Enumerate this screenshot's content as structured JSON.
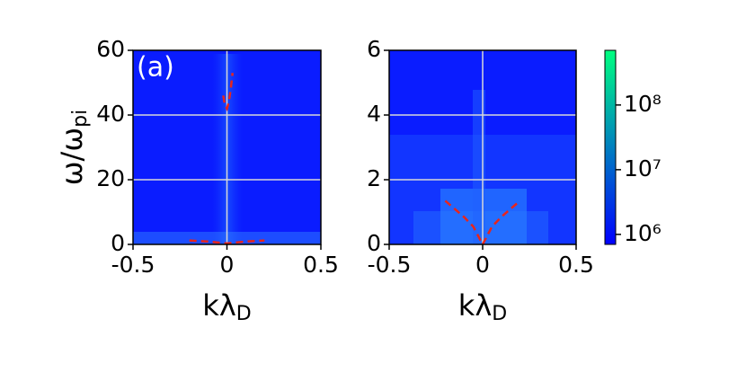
{
  "chart_data": [
    {
      "type": "heatmap",
      "annotation": "(a)",
      "x_label": {
        "text": "kλ",
        "sub": "D"
      },
      "y_label": {
        "text": "ω/ω",
        "sub": "pi"
      },
      "xlim": [
        -0.5,
        0.5
      ],
      "xticks": [
        -0.5,
        0.0,
        0.5
      ],
      "ylim": [
        0,
        60
      ],
      "yticks": [
        0,
        20,
        40,
        60
      ],
      "grid": true,
      "series": [
        {
          "color": "#e8251c",
          "x": [
            -0.02,
            -0.01,
            0.0,
            0.01,
            0.02,
            0.03
          ],
          "values": [
            46,
            43,
            42,
            44,
            48,
            53
          ]
        },
        {
          "color": "#e8251c",
          "x": [
            -0.2,
            -0.1,
            0.0,
            0.1,
            0.2
          ],
          "values": [
            1.2,
            0.9,
            0.3,
            0.9,
            1.2
          ]
        }
      ]
    },
    {
      "type": "heatmap",
      "x_label": {
        "text": "kλ",
        "sub": "D"
      },
      "xlim": [
        -0.5,
        0.5
      ],
      "xticks": [
        -0.5,
        0.0,
        0.5
      ],
      "ylim": [
        0,
        6
      ],
      "yticks": [
        0,
        2,
        4,
        6
      ],
      "grid": true,
      "series": [
        {
          "color": "#e8251c",
          "x": [
            -0.2,
            -0.15,
            -0.1,
            -0.05,
            0.0,
            0.05,
            0.1,
            0.15,
            0.2
          ],
          "values": [
            1.35,
            1.1,
            0.85,
            0.55,
            0.0,
            0.55,
            0.85,
            1.1,
            1.35
          ]
        }
      ],
      "colorbar": {
        "log": true,
        "lim": [
          700000,
          700000000
        ],
        "ticks": [
          {
            "value": 1000000,
            "label": "10⁶"
          },
          {
            "value": 10000000,
            "label": "10⁷"
          },
          {
            "value": 100000000,
            "label": "10⁸"
          }
        ],
        "colors": [
          "#0000ff",
          "#00ff80"
        ]
      }
    }
  ]
}
